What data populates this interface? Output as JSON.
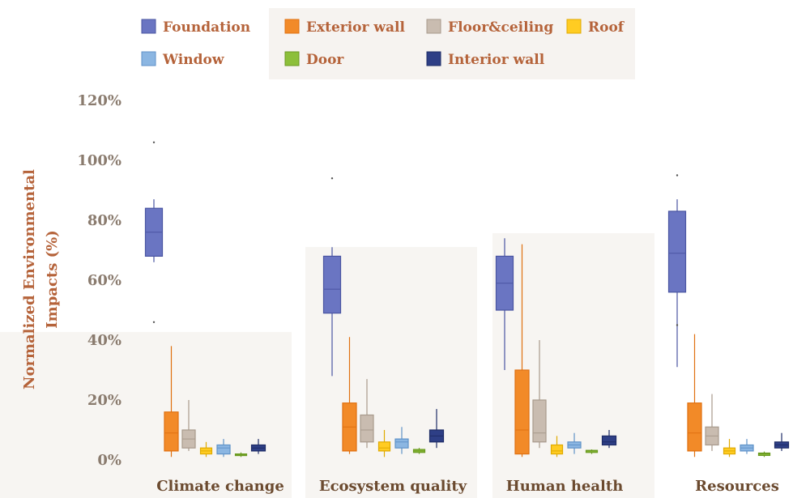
{
  "chart_data": {
    "type": "boxplot",
    "title": "",
    "ylabel_lines": [
      "Normalized Environmental",
      "Impacts (%)"
    ],
    "ylim": [
      0,
      120
    ],
    "yticks": [
      {
        "value": 0,
        "label": "0%"
      },
      {
        "value": 20,
        "label": "20%"
      },
      {
        "value": 40,
        "label": "40%"
      },
      {
        "value": 60,
        "label": "60%"
      },
      {
        "value": 80,
        "label": "80%"
      },
      {
        "value": 100,
        "label": "100%"
      },
      {
        "value": 120,
        "label": "120%"
      }
    ],
    "categories": [
      "Climate change",
      "Ecosystem quality",
      "Human health",
      "Resources"
    ],
    "legend_position": "top",
    "series": [
      {
        "name": "Foundation",
        "color": "#6a75c2",
        "edge": "#4a55a2",
        "stats": [
          {
            "whislo": 66,
            "q1": 68,
            "med": 76,
            "q3": 84,
            "whishi": 87,
            "fliers": [
              46,
              106
            ]
          },
          {
            "whislo": 28,
            "q1": 49,
            "med": 57,
            "q3": 68,
            "whishi": 71,
            "fliers": [
              94
            ]
          },
          {
            "whislo": 30,
            "q1": 50,
            "med": 59,
            "q3": 68,
            "whishi": 74,
            "fliers": []
          },
          {
            "whislo": 31,
            "q1": 56,
            "med": 69,
            "q3": 83,
            "whishi": 87,
            "fliers": [
              45,
              95
            ]
          }
        ]
      },
      {
        "name": "Exterior wall",
        "color": "#f28a28",
        "edge": "#e07010",
        "stats": [
          {
            "whislo": 1,
            "q1": 3,
            "med": 9,
            "q3": 16,
            "whishi": 38,
            "fliers": []
          },
          {
            "whislo": 2,
            "q1": 3,
            "med": 11,
            "q3": 19,
            "whishi": 41,
            "fliers": []
          },
          {
            "whislo": 1,
            "q1": 2,
            "med": 10,
            "q3": 30,
            "whishi": 72,
            "fliers": []
          },
          {
            "whislo": 1,
            "q1": 3,
            "med": 9,
            "q3": 19,
            "whishi": 42,
            "fliers": []
          }
        ]
      },
      {
        "name": "Floor&ceiling",
        "color": "#c9bcb0",
        "edge": "#a89a8c",
        "stats": [
          {
            "whislo": 3,
            "q1": 4,
            "med": 7,
            "q3": 10,
            "whishi": 20,
            "fliers": []
          },
          {
            "whislo": 4,
            "q1": 6,
            "med": 10,
            "q3": 15,
            "whishi": 27,
            "fliers": []
          },
          {
            "whislo": 4,
            "q1": 6,
            "med": 9,
            "q3": 20,
            "whishi": 40,
            "fliers": []
          },
          {
            "whislo": 3,
            "q1": 5,
            "med": 8,
            "q3": 11,
            "whishi": 22,
            "fliers": []
          }
        ]
      },
      {
        "name": "Roof",
        "color": "#ffcc22",
        "edge": "#e0aa00",
        "stats": [
          {
            "whislo": 1,
            "q1": 2,
            "med": 3,
            "q3": 4,
            "whishi": 6,
            "fliers": []
          },
          {
            "whislo": 1,
            "q1": 3,
            "med": 4,
            "q3": 6,
            "whishi": 10,
            "fliers": []
          },
          {
            "whislo": 1,
            "q1": 2,
            "med": 3,
            "q3": 5,
            "whishi": 8,
            "fliers": []
          },
          {
            "whislo": 1,
            "q1": 2,
            "med": 3,
            "q3": 4,
            "whishi": 7,
            "fliers": []
          }
        ]
      },
      {
        "name": "Window",
        "color": "#8bb6e2",
        "edge": "#5f92c8",
        "stats": [
          {
            "whislo": 1,
            "q1": 2,
            "med": 4,
            "q3": 5,
            "whishi": 7,
            "fliers": []
          },
          {
            "whislo": 2,
            "q1": 4,
            "med": 6,
            "q3": 7,
            "whishi": 11,
            "fliers": []
          },
          {
            "whislo": 2,
            "q1": 4,
            "med": 5,
            "q3": 6,
            "whishi": 9,
            "fliers": []
          },
          {
            "whislo": 2,
            "q1": 3,
            "med": 4,
            "q3": 5,
            "whishi": 7,
            "fliers": []
          }
        ]
      },
      {
        "name": "Door",
        "color": "#8cbf3a",
        "edge": "#6a9a20",
        "stats": [
          {
            "whislo": 1,
            "q1": 1.5,
            "med": 1.8,
            "q3": 2,
            "whishi": 2.5,
            "fliers": []
          },
          {
            "whislo": 2,
            "q1": 2.5,
            "med": 3,
            "q3": 3.5,
            "whishi": 4,
            "fliers": []
          },
          {
            "whislo": 2,
            "q1": 2.5,
            "med": 3,
            "q3": 3.2,
            "whishi": 3.5,
            "fliers": []
          },
          {
            "whislo": 1,
            "q1": 1.5,
            "med": 2,
            "q3": 2.3,
            "whishi": 2.8,
            "fliers": []
          }
        ]
      },
      {
        "name": "Interior wall",
        "color": "#2e3f86",
        "edge": "#1e2c66",
        "stats": [
          {
            "whislo": 2,
            "q1": 3,
            "med": 4,
            "q3": 5,
            "whishi": 7,
            "fliers": []
          },
          {
            "whislo": 4,
            "q1": 6,
            "med": 8,
            "q3": 10,
            "whishi": 17,
            "fliers": []
          },
          {
            "whislo": 4,
            "q1": 5,
            "med": 6,
            "q3": 8,
            "whishi": 10,
            "fliers": []
          },
          {
            "whislo": 3,
            "q1": 4,
            "med": 5,
            "q3": 6,
            "whishi": 9,
            "fliers": []
          }
        ]
      }
    ]
  }
}
